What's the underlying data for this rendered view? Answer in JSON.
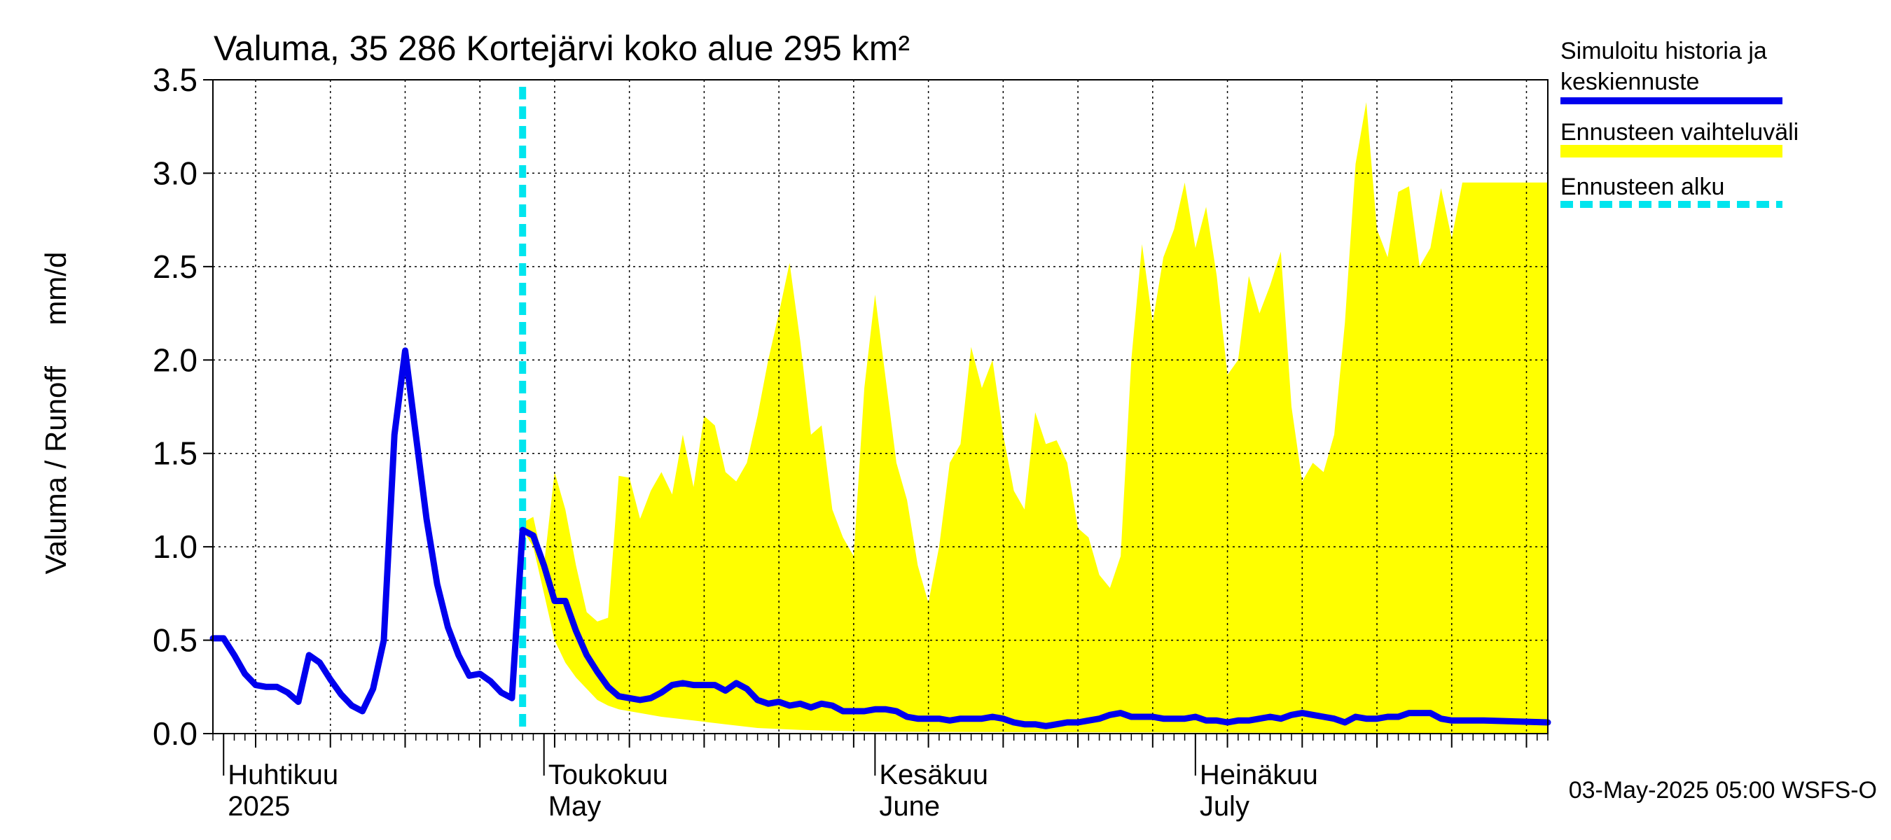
{
  "chart_data": {
    "type": "area",
    "title": "Valuma, 35 286 Kortejärvi koko alue 295 km²",
    "ylabel": "Valuma / Runoff     mm/d",
    "ylim": [
      0,
      3.5
    ],
    "yticks": [
      "0.0",
      "0.5",
      "1.0",
      "1.5",
      "2.0",
      "2.5",
      "3.0",
      "3.5"
    ],
    "x_start": "2025-03-31",
    "x_end": "2025-08-03",
    "forecast_start": "2025-04-29",
    "grid": true,
    "legend_position": "right",
    "month_labels": [
      {
        "fi": "Huhtikuu",
        "en": "2025",
        "date": "2025-04-01"
      },
      {
        "fi": "Toukokuu",
        "en": "May",
        "date": "2025-05-01"
      },
      {
        "fi": "Kesäkuu",
        "en": "June",
        "date": "2025-06-01"
      },
      {
        "fi": "Heinäkuu",
        "en": "July",
        "date": "2025-07-01"
      }
    ],
    "series": [
      {
        "name": "Simuloitu historia ja keskiennuste",
        "color": "#0000ee",
        "points": [
          [
            "2025-03-31",
            0.51
          ],
          [
            "2025-04-01",
            0.51
          ],
          [
            "2025-04-02",
            0.42
          ],
          [
            "2025-04-03",
            0.32
          ],
          [
            "2025-04-04",
            0.26
          ],
          [
            "2025-04-05",
            0.25
          ],
          [
            "2025-04-06",
            0.25
          ],
          [
            "2025-04-07",
            0.22
          ],
          [
            "2025-04-08",
            0.17
          ],
          [
            "2025-04-09",
            0.42
          ],
          [
            "2025-04-10",
            0.38
          ],
          [
            "2025-04-11",
            0.29
          ],
          [
            "2025-04-12",
            0.21
          ],
          [
            "2025-04-13",
            0.15
          ],
          [
            "2025-04-14",
            0.12
          ],
          [
            "2025-04-15",
            0.24
          ],
          [
            "2025-04-16",
            0.5
          ],
          [
            "2025-04-17",
            1.6
          ],
          [
            "2025-04-18",
            2.05
          ],
          [
            "2025-04-19",
            1.6
          ],
          [
            "2025-04-20",
            1.15
          ],
          [
            "2025-04-21",
            0.8
          ],
          [
            "2025-04-22",
            0.57
          ],
          [
            "2025-04-23",
            0.42
          ],
          [
            "2025-04-24",
            0.31
          ],
          [
            "2025-04-25",
            0.32
          ],
          [
            "2025-04-26",
            0.28
          ],
          [
            "2025-04-27",
            0.22
          ],
          [
            "2025-04-28",
            0.19
          ],
          [
            "2025-04-29",
            1.09
          ],
          [
            "2025-04-30",
            1.06
          ],
          [
            "2025-05-01",
            0.9
          ],
          [
            "2025-05-02",
            0.71
          ],
          [
            "2025-05-03",
            0.71
          ],
          [
            "2025-05-04",
            0.55
          ],
          [
            "2025-05-05",
            0.42
          ],
          [
            "2025-05-06",
            0.33
          ],
          [
            "2025-05-07",
            0.25
          ],
          [
            "2025-05-08",
            0.2
          ],
          [
            "2025-05-09",
            0.19
          ],
          [
            "2025-05-10",
            0.18
          ],
          [
            "2025-05-11",
            0.19
          ],
          [
            "2025-05-12",
            0.22
          ],
          [
            "2025-05-13",
            0.26
          ],
          [
            "2025-05-14",
            0.27
          ],
          [
            "2025-05-15",
            0.26
          ],
          [
            "2025-05-16",
            0.26
          ],
          [
            "2025-05-17",
            0.26
          ],
          [
            "2025-05-18",
            0.23
          ],
          [
            "2025-05-19",
            0.27
          ],
          [
            "2025-05-20",
            0.24
          ],
          [
            "2025-05-21",
            0.18
          ],
          [
            "2025-05-22",
            0.16
          ],
          [
            "2025-05-23",
            0.17
          ],
          [
            "2025-05-24",
            0.15
          ],
          [
            "2025-05-25",
            0.16
          ],
          [
            "2025-05-26",
            0.14
          ],
          [
            "2025-05-27",
            0.16
          ],
          [
            "2025-05-28",
            0.15
          ],
          [
            "2025-05-29",
            0.12
          ],
          [
            "2025-05-30",
            0.12
          ],
          [
            "2025-05-31",
            0.12
          ],
          [
            "2025-06-01",
            0.13
          ],
          [
            "2025-06-02",
            0.13
          ],
          [
            "2025-06-03",
            0.12
          ],
          [
            "2025-06-04",
            0.09
          ],
          [
            "2025-06-05",
            0.08
          ],
          [
            "2025-06-06",
            0.08
          ],
          [
            "2025-06-07",
            0.08
          ],
          [
            "2025-06-08",
            0.07
          ],
          [
            "2025-06-09",
            0.08
          ],
          [
            "2025-06-10",
            0.08
          ],
          [
            "2025-06-11",
            0.08
          ],
          [
            "2025-06-12",
            0.09
          ],
          [
            "2025-06-13",
            0.08
          ],
          [
            "2025-06-14",
            0.06
          ],
          [
            "2025-06-15",
            0.05
          ],
          [
            "2025-06-16",
            0.05
          ],
          [
            "2025-06-17",
            0.04
          ],
          [
            "2025-06-18",
            0.05
          ],
          [
            "2025-06-19",
            0.06
          ],
          [
            "2025-06-20",
            0.06
          ],
          [
            "2025-06-21",
            0.07
          ],
          [
            "2025-06-22",
            0.08
          ],
          [
            "2025-06-23",
            0.1
          ],
          [
            "2025-06-24",
            0.11
          ],
          [
            "2025-06-25",
            0.09
          ],
          [
            "2025-06-26",
            0.09
          ],
          [
            "2025-06-27",
            0.09
          ],
          [
            "2025-06-28",
            0.08
          ],
          [
            "2025-06-29",
            0.08
          ],
          [
            "2025-06-30",
            0.08
          ],
          [
            "2025-07-01",
            0.09
          ],
          [
            "2025-07-02",
            0.07
          ],
          [
            "2025-07-03",
            0.07
          ],
          [
            "2025-07-04",
            0.06
          ],
          [
            "2025-07-05",
            0.07
          ],
          [
            "2025-07-06",
            0.07
          ],
          [
            "2025-07-07",
            0.08
          ],
          [
            "2025-07-08",
            0.09
          ],
          [
            "2025-07-09",
            0.08
          ],
          [
            "2025-07-10",
            0.1
          ],
          [
            "2025-07-11",
            0.11
          ],
          [
            "2025-07-12",
            0.1
          ],
          [
            "2025-07-13",
            0.09
          ],
          [
            "2025-07-14",
            0.08
          ],
          [
            "2025-07-15",
            0.06
          ],
          [
            "2025-07-16",
            0.09
          ],
          [
            "2025-07-17",
            0.08
          ],
          [
            "2025-07-18",
            0.08
          ],
          [
            "2025-07-19",
            0.09
          ],
          [
            "2025-07-20",
            0.09
          ],
          [
            "2025-07-21",
            0.11
          ],
          [
            "2025-07-22",
            0.11
          ],
          [
            "2025-07-23",
            0.11
          ],
          [
            "2025-07-24",
            0.08
          ],
          [
            "2025-07-25",
            0.07
          ],
          [
            "2025-07-26",
            0.07
          ],
          [
            "2025-07-27",
            0.07
          ],
          [
            "2025-07-28",
            0.07
          ],
          [
            "2025-08-03",
            0.06
          ]
        ]
      },
      {
        "name": "Ennusteen vaihteluväli",
        "color": "#ffff00",
        "upper": [
          [
            "2025-04-29",
            1.13
          ],
          [
            "2025-04-30",
            1.16
          ],
          [
            "2025-05-01",
            0.9
          ],
          [
            "2025-05-02",
            1.4
          ],
          [
            "2025-05-03",
            1.2
          ],
          [
            "2025-05-04",
            0.9
          ],
          [
            "2025-05-05",
            0.65
          ],
          [
            "2025-05-06",
            0.6
          ],
          [
            "2025-05-07",
            0.62
          ],
          [
            "2025-05-08",
            1.38
          ],
          [
            "2025-05-09",
            1.37
          ],
          [
            "2025-05-10",
            1.15
          ],
          [
            "2025-05-11",
            1.3
          ],
          [
            "2025-05-12",
            1.4
          ],
          [
            "2025-05-13",
            1.28
          ],
          [
            "2025-05-14",
            1.6
          ],
          [
            "2025-05-15",
            1.32
          ],
          [
            "2025-05-16",
            1.7
          ],
          [
            "2025-05-17",
            1.65
          ],
          [
            "2025-05-18",
            1.4
          ],
          [
            "2025-05-19",
            1.35
          ],
          [
            "2025-05-20",
            1.45
          ],
          [
            "2025-05-21",
            1.7
          ],
          [
            "2025-05-22",
            2.0
          ],
          [
            "2025-05-23",
            2.25
          ],
          [
            "2025-05-24",
            2.52
          ],
          [
            "2025-05-25",
            2.1
          ],
          [
            "2025-05-26",
            1.6
          ],
          [
            "2025-05-27",
            1.65
          ],
          [
            "2025-05-28",
            1.2
          ],
          [
            "2025-05-29",
            1.05
          ],
          [
            "2025-05-30",
            0.95
          ],
          [
            "2025-05-31",
            1.85
          ],
          [
            "2025-06-01",
            2.35
          ],
          [
            "2025-06-02",
            1.9
          ],
          [
            "2025-06-03",
            1.45
          ],
          [
            "2025-06-04",
            1.25
          ],
          [
            "2025-06-05",
            0.9
          ],
          [
            "2025-06-06",
            0.7
          ],
          [
            "2025-06-07",
            1.0
          ],
          [
            "2025-06-08",
            1.45
          ],
          [
            "2025-06-09",
            1.55
          ],
          [
            "2025-06-10",
            2.07
          ],
          [
            "2025-06-11",
            1.85
          ],
          [
            "2025-06-12",
            2.0
          ],
          [
            "2025-06-13",
            1.6
          ],
          [
            "2025-06-14",
            1.3
          ],
          [
            "2025-06-15",
            1.2
          ],
          [
            "2025-06-16",
            1.72
          ],
          [
            "2025-06-17",
            1.55
          ],
          [
            "2025-06-18",
            1.57
          ],
          [
            "2025-06-19",
            1.45
          ],
          [
            "2025-06-20",
            1.1
          ],
          [
            "2025-06-21",
            1.05
          ],
          [
            "2025-06-22",
            0.85
          ],
          [
            "2025-06-23",
            0.78
          ],
          [
            "2025-06-24",
            0.95
          ],
          [
            "2025-06-25",
            2.0
          ],
          [
            "2025-06-26",
            2.62
          ],
          [
            "2025-06-27",
            2.2
          ],
          [
            "2025-06-28",
            2.55
          ],
          [
            "2025-06-29",
            2.7
          ],
          [
            "2025-06-30",
            2.95
          ],
          [
            "2025-07-01",
            2.6
          ],
          [
            "2025-07-02",
            2.82
          ],
          [
            "2025-07-03",
            2.45
          ],
          [
            "2025-07-04",
            1.92
          ],
          [
            "2025-07-05",
            2.0
          ],
          [
            "2025-07-06",
            2.45
          ],
          [
            "2025-07-07",
            2.25
          ],
          [
            "2025-07-08",
            2.4
          ],
          [
            "2025-07-09",
            2.58
          ],
          [
            "2025-07-10",
            1.75
          ],
          [
            "2025-07-11",
            1.35
          ],
          [
            "2025-07-12",
            1.45
          ],
          [
            "2025-07-13",
            1.4
          ],
          [
            "2025-07-14",
            1.6
          ],
          [
            "2025-07-15",
            2.2
          ],
          [
            "2025-07-16",
            3.05
          ],
          [
            "2025-07-17",
            3.38
          ],
          [
            "2025-07-18",
            2.7
          ],
          [
            "2025-07-19",
            2.55
          ],
          [
            "2025-07-20",
            2.9
          ],
          [
            "2025-07-21",
            2.93
          ],
          [
            "2025-07-22",
            2.5
          ],
          [
            "2025-07-23",
            2.6
          ],
          [
            "2025-07-24",
            2.92
          ],
          [
            "2025-07-25",
            2.65
          ],
          [
            "2025-07-26",
            2.95
          ],
          [
            "2025-08-03",
            2.95
          ]
        ],
        "lower": [
          [
            "2025-04-29",
            1.09
          ],
          [
            "2025-04-30",
            1.0
          ],
          [
            "2025-05-01",
            0.75
          ],
          [
            "2025-05-02",
            0.5
          ],
          [
            "2025-05-03",
            0.38
          ],
          [
            "2025-05-04",
            0.3
          ],
          [
            "2025-05-05",
            0.24
          ],
          [
            "2025-05-06",
            0.18
          ],
          [
            "2025-05-07",
            0.15
          ],
          [
            "2025-05-08",
            0.13
          ],
          [
            "2025-05-09",
            0.12
          ],
          [
            "2025-05-10",
            0.11
          ],
          [
            "2025-05-12",
            0.09
          ],
          [
            "2025-05-15",
            0.07
          ],
          [
            "2025-05-18",
            0.05
          ],
          [
            "2025-05-21",
            0.03
          ],
          [
            "2025-05-25",
            0.02
          ],
          [
            "2025-06-01",
            0.01
          ],
          [
            "2025-08-03",
            0.0
          ]
        ]
      },
      {
        "name": "Ennusteen alku",
        "color": "#00e5ee"
      }
    ]
  },
  "timestamp": "03-May-2025 05:00 WSFS-O"
}
